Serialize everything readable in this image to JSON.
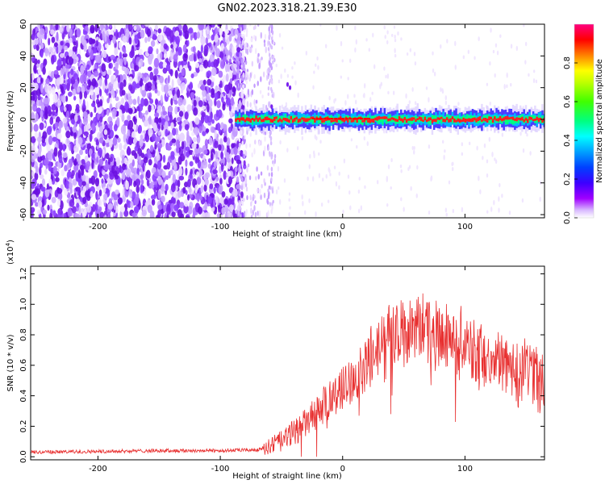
{
  "figure_title": "GN02.2023.318.21.39.E30",
  "colorbar": {
    "label": "Normalized spectral amplitude",
    "ticks": [
      "0.0",
      "0.2",
      "0.4",
      "0.6",
      "0.8"
    ],
    "tick_values": [
      0.0,
      0.2,
      0.4,
      0.6,
      0.8
    ],
    "range": [
      0,
      1
    ],
    "colormap": [
      "#ffffff",
      "#a000ff",
      "#3c00ff",
      "#0000ff",
      "#00a0ff",
      "#00ffff",
      "#00ff80",
      "#40ff00",
      "#c0ff00",
      "#ffff00",
      "#ff8000",
      "#ff0000",
      "#ff0080"
    ]
  },
  "chart_data": [
    {
      "type": "heatmap",
      "xlabel": "Height of straight line (km)",
      "ylabel": "Frequency (Hz)",
      "xlim": [
        -255,
        165
      ],
      "ylim": [
        -62,
        60
      ],
      "xticks": [
        "-200",
        "-100",
        "0",
        "100"
      ],
      "xtick_values": [
        -200,
        -100,
        0,
        100
      ],
      "yticks": [
        "-60",
        "-40",
        "-20",
        "0",
        "20",
        "40",
        "60"
      ],
      "ytick_values": [
        -60,
        -40,
        -20,
        0,
        20,
        40,
        60
      ],
      "description_regions": {
        "noise_region_x": [
          -255,
          -85
        ],
        "transition_region_x": [
          -85,
          -55
        ],
        "signal_band_x": [
          -88,
          165
        ],
        "signal_band_frequency": 0
      }
    },
    {
      "type": "line",
      "xlabel": "Height of straight line (km)",
      "ylabel": "SNR (10 * v/v)",
      "yscale_label": "(x10",
      "yscale_exp": "4",
      "yscale_close": ")",
      "xlim": [
        -255,
        165
      ],
      "ylim": [
        -0.02,
        1.25
      ],
      "xticks": [
        "-200",
        "-100",
        "0",
        "100"
      ],
      "xtick_values": [
        -200,
        -100,
        0,
        100
      ],
      "yticks": [
        "0.0",
        "0.2",
        "0.4",
        "0.6",
        "0.8",
        "1.0",
        "1.2"
      ],
      "ytick_values": [
        0.0,
        0.2,
        0.4,
        0.6,
        0.8,
        1.0,
        1.2
      ],
      "color": "#e83030",
      "series": [
        {
          "x": [
            -255,
            -200,
            -150,
            -100,
            -70,
            -60,
            -50,
            -40,
            -30,
            -20,
            -10,
            0,
            10,
            20,
            30,
            40,
            50,
            60,
            70,
            80,
            90,
            100,
            110,
            120,
            130,
            140,
            150,
            160,
            165
          ],
          "y": [
            0.03,
            0.035,
            0.04,
            0.04,
            0.045,
            0.07,
            0.1,
            0.16,
            0.22,
            0.3,
            0.38,
            0.45,
            0.52,
            0.6,
            0.7,
            0.78,
            0.82,
            0.84,
            0.84,
            0.8,
            0.76,
            0.72,
            0.68,
            0.65,
            0.62,
            0.58,
            0.55,
            0.52,
            0.5
          ]
        }
      ]
    }
  ]
}
